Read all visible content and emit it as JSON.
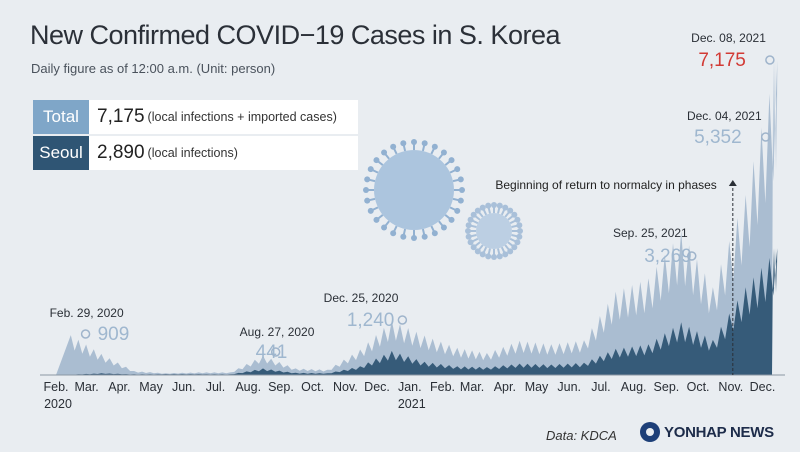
{
  "title": "New Confirmed COVID−19 Cases in S. Korea",
  "subtitle": "Daily figure as of 12:00 a.m. (Unit: person)",
  "summary": {
    "total": {
      "key": "Total",
      "value": "7,175",
      "note": "(local infections + imported cases)"
    },
    "seoul": {
      "key": "Seoul",
      "value": "2,890",
      "note": "(local infections)"
    }
  },
  "source": "Data: KDCA",
  "logo": "YONHAP NEWS",
  "colors": {
    "background": "#e9edf1",
    "total_series": "#9fb4cb",
    "seoul_series": "#2f5574",
    "highlight": "#d23a35"
  },
  "chart_data": {
    "type": "area",
    "title": "New Confirmed COVID−19 Cases in S. Korea",
    "unit": "person",
    "x_ticks": [
      "Feb.",
      "Mar.",
      "Apr.",
      "May",
      "Jun.",
      "Jul.",
      "Aug.",
      "Sep.",
      "Oct.",
      "Nov.",
      "Dec.",
      "Jan.",
      "Feb.",
      "Mar.",
      "Apr.",
      "May",
      "Jun.",
      "Jul.",
      "Aug.",
      "Sep.",
      "Oct.",
      "Nov.",
      "Dec."
    ],
    "year_labels": [
      {
        "label": "2020",
        "at": "2020-02"
      },
      {
        "label": "2021",
        "at": "2021-01"
      }
    ],
    "series": [
      {
        "name": "Total",
        "monthly_peak": [
          [
            "2020-02",
            909
          ],
          [
            "2020-03",
            480
          ],
          [
            "2020-04",
            90
          ],
          [
            "2020-05",
            40
          ],
          [
            "2020-06",
            60
          ],
          [
            "2020-07",
            60
          ],
          [
            "2020-08",
            441
          ],
          [
            "2020-09",
            150
          ],
          [
            "2020-10",
            120
          ],
          [
            "2020-11",
            580
          ],
          [
            "2020-12",
            1240
          ],
          [
            "2021-01",
            900
          ],
          [
            "2021-02",
            620
          ],
          [
            "2021-03",
            500
          ],
          [
            "2021-04",
            780
          ],
          [
            "2021-05",
            700
          ],
          [
            "2021-06",
            790
          ],
          [
            "2021-07",
            1900
          ],
          [
            "2021-08",
            2200
          ],
          [
            "2021-09",
            3269
          ],
          [
            "2021-10",
            2000
          ],
          [
            "2021-11",
            4100
          ],
          [
            "2021-12",
            7175
          ]
        ]
      },
      {
        "name": "Seoul",
        "monthly_peak": [
          [
            "2020-02",
            10
          ],
          [
            "2020-03",
            40
          ],
          [
            "2020-04",
            15
          ],
          [
            "2020-05",
            20
          ],
          [
            "2020-06",
            20
          ],
          [
            "2020-07",
            15
          ],
          [
            "2020-08",
            150
          ],
          [
            "2020-09",
            50
          ],
          [
            "2020-10",
            40
          ],
          [
            "2020-11",
            200
          ],
          [
            "2020-12",
            550
          ],
          [
            "2021-01",
            300
          ],
          [
            "2021-02",
            200
          ],
          [
            "2021-03",
            180
          ],
          [
            "2021-04",
            260
          ],
          [
            "2021-05",
            240
          ],
          [
            "2021-06",
            280
          ],
          [
            "2021-07",
            600
          ],
          [
            "2021-08",
            700
          ],
          [
            "2021-09",
            1200
          ],
          [
            "2021-10",
            800
          ],
          [
            "2021-11",
            2000
          ],
          [
            "2021-12",
            2890
          ]
        ]
      }
    ],
    "annotations": [
      {
        "date": "Feb. 29, 2020",
        "x": "2020-02-29",
        "value": "909",
        "highlight": false
      },
      {
        "date": "Aug. 27, 2020",
        "x": "2020-08-27",
        "value": "441",
        "highlight": false
      },
      {
        "date": "Dec. 25, 2020",
        "x": "2020-12-25",
        "value": "1,240",
        "highlight": false
      },
      {
        "date": "Sep. 25, 2021",
        "x": "2021-09-25",
        "value": "3,269",
        "highlight": false
      },
      {
        "date": "Dec. 04, 2021",
        "x": "2021-12-04",
        "value": "5,352",
        "highlight": false
      },
      {
        "date": "Dec. 08, 2021",
        "x": "2021-12-08",
        "value": "7,175",
        "highlight": true
      }
    ],
    "event_note": {
      "text": "Beginning of return to normalcy in phases",
      "x": "2021-11-01"
    }
  }
}
